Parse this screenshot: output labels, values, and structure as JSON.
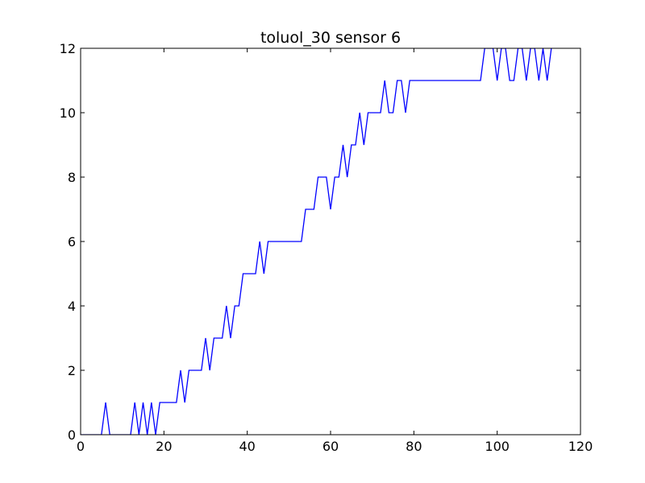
{
  "chart_data": {
    "type": "line",
    "title": "toluol_30 sensor 6",
    "xlabel": "",
    "ylabel": "",
    "xlim": [
      0,
      120
    ],
    "ylim": [
      0,
      12
    ],
    "xticks": [
      0,
      20,
      40,
      60,
      80,
      100,
      120
    ],
    "yticks": [
      0,
      2,
      4,
      6,
      8,
      10,
      12
    ],
    "xtick_labels": [
      "0",
      "20",
      "40",
      "60",
      "80",
      "100",
      "120"
    ],
    "ytick_labels": [
      "0",
      "2",
      "4",
      "6",
      "8",
      "10",
      "12"
    ],
    "grid": false,
    "series": [
      {
        "color": "#0000ff",
        "x": [
          0,
          1,
          2,
          3,
          4,
          5,
          6,
          7,
          8,
          9,
          10,
          11,
          12,
          13,
          14,
          15,
          16,
          17,
          18,
          19,
          20,
          21,
          22,
          23,
          24,
          25,
          26,
          27,
          28,
          29,
          30,
          31,
          32,
          33,
          34,
          35,
          36,
          37,
          38,
          39,
          40,
          41,
          42,
          43,
          44,
          45,
          46,
          47,
          48,
          49,
          50,
          51,
          52,
          53,
          54,
          55,
          56,
          57,
          58,
          59,
          60,
          61,
          62,
          63,
          64,
          65,
          66,
          67,
          68,
          69,
          70,
          71,
          72,
          73,
          74,
          75,
          76,
          77,
          78,
          79,
          80,
          81,
          82,
          83,
          84,
          85,
          86,
          87,
          88,
          89,
          90,
          91,
          92,
          93,
          94,
          95,
          96,
          97,
          98,
          99,
          100,
          101,
          102,
          103,
          104,
          105,
          106,
          107,
          108,
          109,
          110,
          111,
          112,
          113
        ],
        "y": [
          0,
          0,
          0,
          0,
          0,
          0,
          1,
          0,
          0,
          0,
          0,
          0,
          0,
          1,
          0,
          1,
          0,
          1,
          0,
          1,
          1,
          1,
          1,
          1,
          2,
          1,
          2,
          2,
          2,
          2,
          3,
          2,
          3,
          3,
          3,
          4,
          3,
          4,
          4,
          5,
          5,
          5,
          5,
          6,
          5,
          6,
          6,
          6,
          6,
          6,
          6,
          6,
          6,
          6,
          7,
          7,
          7,
          8,
          8,
          8,
          7,
          8,
          8,
          9,
          8,
          9,
          9,
          10,
          9,
          10,
          10,
          10,
          10,
          11,
          10,
          10,
          11,
          11,
          10,
          11,
          11,
          11,
          11,
          11,
          11,
          11,
          11,
          11,
          11,
          11,
          11,
          11,
          11,
          11,
          11,
          11,
          11,
          12,
          12,
          12,
          11,
          12,
          12,
          11,
          11,
          12,
          12,
          11,
          12,
          12,
          11,
          12,
          11,
          12
        ]
      }
    ]
  }
}
